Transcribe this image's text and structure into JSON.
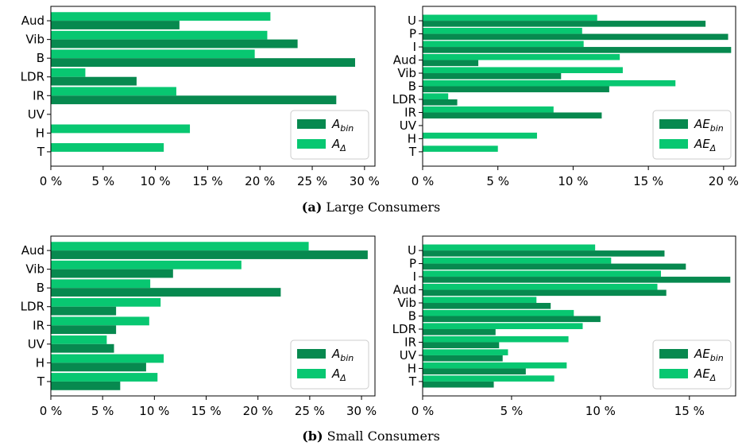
{
  "colors": {
    "bin": "#07894f",
    "delta": "#08c771"
  },
  "captions": [
    {
      "label": "(a)",
      "text": "Large Consumers"
    },
    {
      "label": "(b)",
      "text": "Small Consumers"
    }
  ],
  "chart_data": [
    {
      "type": "bar",
      "orientation": "horizontal",
      "categories": [
        "Aud",
        "Vib",
        "B",
        "LDR",
        "IR",
        "UV",
        "H",
        "T"
      ],
      "series": [
        {
          "name": "A_bin",
          "legend_main": "A",
          "legend_sub": "bin",
          "values": [
            12.3,
            23.6,
            29.1,
            8.2,
            27.3,
            0,
            0,
            0
          ]
        },
        {
          "name": "A_Δ",
          "legend_main": "A",
          "legend_sub": "Δ",
          "values": [
            21.0,
            20.7,
            19.5,
            3.3,
            12.0,
            0,
            13.3,
            10.8
          ]
        }
      ],
      "xticks": [
        "0 %",
        "5 %",
        "10 %",
        "15 %",
        "20 %",
        "25 %",
        "30 %"
      ],
      "xtick_values": [
        0,
        5,
        10,
        15,
        20,
        25,
        30
      ],
      "xlim": [
        0,
        31
      ],
      "legend_position": "lower right"
    },
    {
      "type": "bar",
      "orientation": "horizontal",
      "categories": [
        "U",
        "P",
        "I",
        "Aud",
        "Vib",
        "B",
        "LDR",
        "IR",
        "UV",
        "H",
        "T"
      ],
      "series": [
        {
          "name": "AE_bin",
          "legend_main": "AE",
          "legend_sub": "bin",
          "values": [
            18.8,
            20.3,
            20.5,
            3.7,
            9.2,
            12.4,
            2.3,
            11.9,
            0,
            0,
            0
          ]
        },
        {
          "name": "AE_Δ",
          "legend_main": "AE",
          "legend_sub": "Δ",
          "values": [
            11.6,
            10.6,
            10.7,
            13.1,
            13.3,
            16.8,
            1.7,
            8.7,
            0,
            7.6,
            5.0
          ]
        }
      ],
      "xticks": [
        "0 %",
        "5 %",
        "10 %",
        "15 %",
        "20 %"
      ],
      "xtick_values": [
        0,
        5,
        10,
        15,
        20
      ],
      "xlim": [
        0,
        20.8
      ],
      "legend_position": "lower right"
    },
    {
      "type": "bar",
      "orientation": "horizontal",
      "categories": [
        "Aud",
        "Vib",
        "B",
        "LDR",
        "IR",
        "UV",
        "H",
        "T"
      ],
      "series": [
        {
          "name": "A_bin",
          "legend_main": "A",
          "legend_sub": "bin",
          "values": [
            30.6,
            11.8,
            22.2,
            6.3,
            6.3,
            6.1,
            9.2,
            6.7
          ]
        },
        {
          "name": "A_Δ",
          "legend_main": "A",
          "legend_sub": "Δ",
          "values": [
            24.9,
            18.4,
            9.6,
            10.6,
            9.5,
            5.4,
            10.9,
            10.3
          ]
        }
      ],
      "xticks": [
        "0 %",
        "5 %",
        "10 %",
        "15 %",
        "20 %",
        "25 %",
        "30 %"
      ],
      "xtick_values": [
        0,
        5,
        10,
        15,
        20,
        25,
        30
      ],
      "xlim": [
        0,
        31.3
      ],
      "legend_position": "lower right"
    },
    {
      "type": "bar",
      "orientation": "horizontal",
      "categories": [
        "U",
        "P",
        "I",
        "Aud",
        "Vib",
        "B",
        "LDR",
        "IR",
        "UV",
        "H",
        "T"
      ],
      "series": [
        {
          "name": "AE_bin",
          "legend_main": "AE",
          "legend_sub": "bin",
          "values": [
            13.6,
            14.8,
            17.3,
            13.7,
            7.2,
            10.0,
            4.1,
            4.3,
            4.5,
            5.8,
            4.0
          ]
        },
        {
          "name": "AE_Δ",
          "legend_main": "AE",
          "legend_sub": "Δ",
          "values": [
            9.7,
            10.6,
            13.4,
            13.2,
            6.4,
            8.5,
            9.0,
            8.2,
            4.8,
            8.1,
            7.4
          ]
        }
      ],
      "xticks": [
        "0 %",
        "5 %",
        "10 %",
        "15 %"
      ],
      "xtick_values": [
        0,
        5,
        10,
        15
      ],
      "xlim": [
        0,
        17.6
      ],
      "legend_position": "lower right"
    }
  ]
}
